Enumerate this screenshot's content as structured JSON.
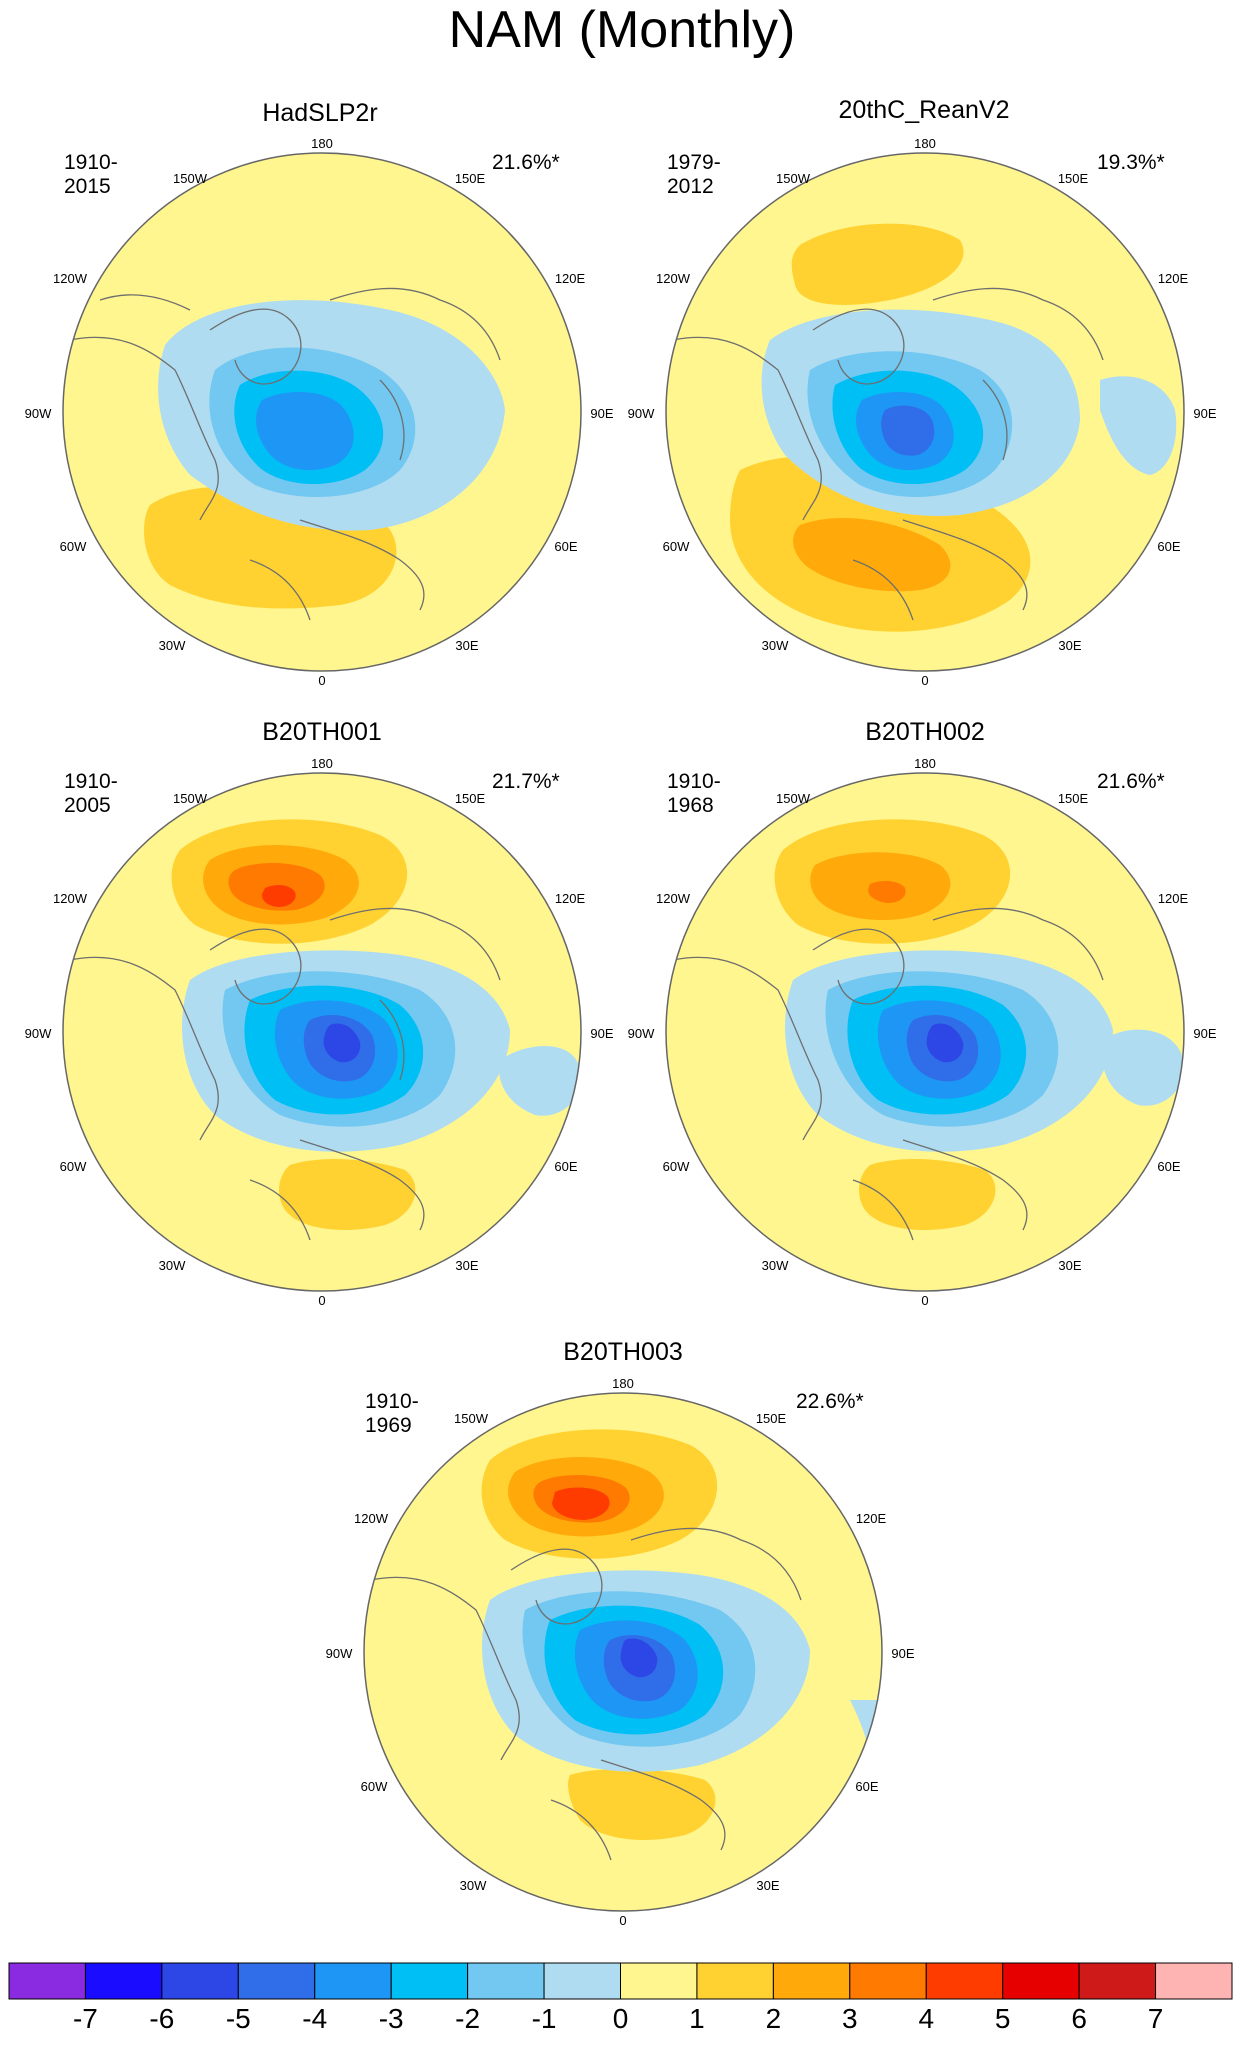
{
  "title": "NAM (Monthly)",
  "longitude_labels": {
    "deg180": "180",
    "w150": "150W",
    "e150": "150E",
    "w120": "120W",
    "e120": "120E",
    "w90": "90W",
    "e90": "90E",
    "w60": "60W",
    "e60": "60E",
    "w30": "30W",
    "e30": "30E",
    "deg0": "0"
  },
  "panels": [
    {
      "name": "HadSLP2r",
      "period": "1910-2015",
      "variance": "21.6%*"
    },
    {
      "name": "20thC_ReanV2",
      "period": "1979-2012",
      "variance": "19.3%*"
    },
    {
      "name": "B20TH001",
      "period": "1910-2005",
      "variance": "21.7%*"
    },
    {
      "name": "B20TH002",
      "period": "1910-1968",
      "variance": "21.6%*"
    },
    {
      "name": "B20TH003",
      "period": "1910-1969",
      "variance": "22.6%*"
    }
  ],
  "colorbar": {
    "labels": [
      "-7",
      "-6",
      "-5",
      "-4",
      "-3",
      "-2",
      "-1",
      "0",
      "1",
      "2",
      "3",
      "4",
      "5",
      "6",
      "7"
    ],
    "colors": [
      "#8a2be2",
      "#1a0dff",
      "#2d46e6",
      "#2f6ee8",
      "#1e96f5",
      "#00bff5",
      "#72c8f0",
      "#b0dcf2",
      "#fff68f",
      "#ffd232",
      "#ffaa0a",
      "#ff7a00",
      "#ff3c00",
      "#e60000",
      "#cf1a1a",
      "#ffb4b4"
    ]
  },
  "colors": {
    "land_outline": "#6e6e6e",
    "ocean_fill": "#fff68f",
    "map_border": "#666666"
  }
}
